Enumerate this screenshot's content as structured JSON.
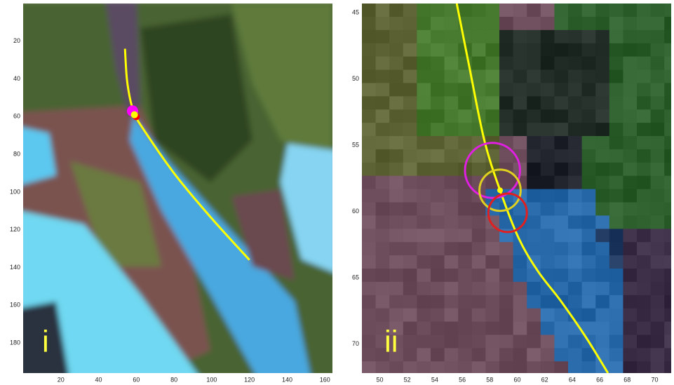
{
  "chart_data": [
    {
      "type": "line",
      "label": "i",
      "xlim": [
        0,
        164
      ],
      "ylim": [
        196,
        0
      ],
      "xticks": [
        20,
        40,
        60,
        80,
        100,
        120,
        140,
        160
      ],
      "yticks": [
        20,
        40,
        60,
        80,
        100,
        120,
        140,
        160,
        180
      ],
      "series": [
        {
          "color": "#ffff00",
          "x": [
            54,
            55,
            57,
            59,
            62,
            80,
            100,
            120
          ],
          "values": [
            24,
            40,
            52,
            58,
            64,
            90,
            114,
            136
          ]
        }
      ],
      "points": [
        {
          "color": "#ff00ff",
          "x": 58,
          "y": 57
        },
        {
          "color": "#ff0000",
          "x": 60,
          "y": 60
        },
        {
          "color": "#ffff00",
          "x": 59,
          "y": 59
        }
      ]
    },
    {
      "type": "line",
      "label": "ii",
      "xlim": [
        48.7,
        71.2
      ],
      "ylim": [
        72.2,
        44.3
      ],
      "xticks": [
        50,
        52,
        54,
        56,
        58,
        60,
        62,
        64,
        66,
        68,
        70
      ],
      "yticks": [
        45,
        50,
        55,
        60,
        65,
        70
      ],
      "series": [
        {
          "color": "#ffff00",
          "x": [
            55.6,
            56.5,
            57.6,
            58.75,
            60.1,
            61.5,
            63.2,
            65,
            66.6
          ],
          "values": [
            44.3,
            49,
            54.6,
            58.4,
            62,
            64.5,
            66.8,
            69.5,
            72.2
          ]
        }
      ],
      "circles": [
        {
          "color": "#e020e0",
          "x": 58.2,
          "y": 56.9,
          "r": 2.0
        },
        {
          "color": "#e0d020",
          "x": 58.75,
          "y": 58.4,
          "r": 1.5
        },
        {
          "color": "#e02020",
          "x": 59.3,
          "y": 60.1,
          "r": 1.4
        }
      ],
      "points": [
        {
          "color": "#ffff00",
          "x": 58.75,
          "y": 58.4
        }
      ]
    }
  ]
}
